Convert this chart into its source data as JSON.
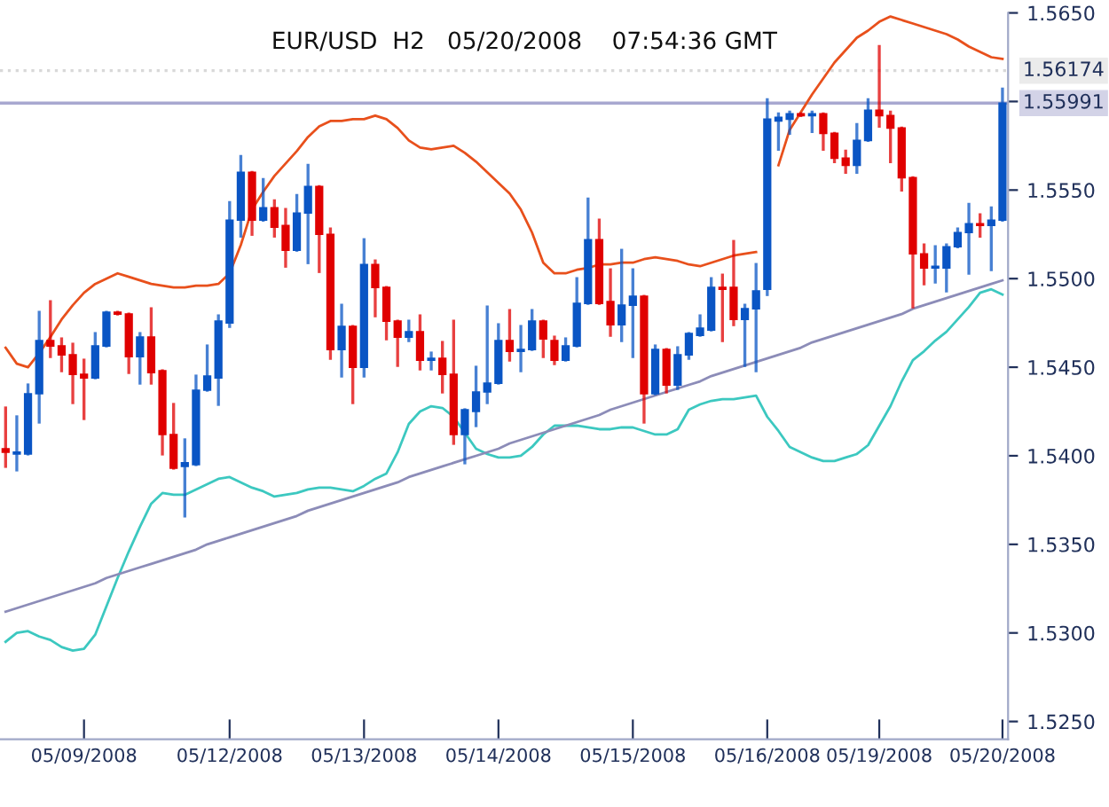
{
  "chart_data": {
    "type": "candlestick",
    "title": "EUR/USD  H2   05/20/2008    07:54:36 GMT",
    "categories": [
      null,
      null,
      null,
      null,
      null,
      null,
      null,
      "05/09/2008",
      null,
      null,
      null,
      null,
      null,
      null,
      null,
      null,
      null,
      null,
      null,
      null,
      "05/12/2008",
      null,
      null,
      null,
      null,
      null,
      null,
      null,
      null,
      null,
      null,
      null,
      "05/13/2008",
      null,
      null,
      null,
      null,
      null,
      null,
      null,
      null,
      null,
      null,
      null,
      "05/14/2008",
      null,
      null,
      null,
      null,
      null,
      null,
      null,
      null,
      null,
      null,
      null,
      "05/15/2008",
      null,
      null,
      null,
      null,
      null,
      null,
      null,
      null,
      null,
      null,
      null,
      "05/16/2008",
      null,
      null,
      null,
      null,
      null,
      null,
      null,
      null,
      null,
      "05/19/2008",
      null,
      null,
      null,
      null,
      null,
      null,
      null,
      null,
      null,
      null,
      "05/20/2008"
    ],
    "ohlc": [
      [
        1.5404,
        1.5427,
        1.5394,
        1.5402
      ],
      [
        1.5401,
        1.5422,
        1.5392,
        1.5402
      ],
      [
        1.5401,
        1.544,
        1.5401,
        1.5435
      ],
      [
        1.5435,
        1.5481,
        1.5419,
        1.5465
      ],
      [
        1.5465,
        1.5487,
        1.5456,
        1.5462
      ],
      [
        1.5462,
        1.5466,
        1.5448,
        1.5457
      ],
      [
        1.5457,
        1.5463,
        1.543,
        1.5446
      ],
      [
        1.5446,
        1.5454,
        1.5421,
        1.5444
      ],
      [
        1.5444,
        1.5469,
        1.5444,
        1.5462
      ],
      [
        1.5462,
        1.5481,
        1.5462,
        1.5481
      ],
      [
        1.5481,
        1.5481,
        1.548,
        1.548
      ],
      [
        1.548,
        1.548,
        1.5447,
        1.5456
      ],
      [
        1.5456,
        1.5469,
        1.5441,
        1.5467
      ],
      [
        1.5467,
        1.5483,
        1.5441,
        1.5447
      ],
      [
        1.5448,
        1.5448,
        1.5401,
        1.5412
      ],
      [
        1.5412,
        1.5429,
        1.5393,
        1.5393
      ],
      [
        1.5394,
        1.5409,
        1.5366,
        1.5396
      ],
      [
        1.5395,
        1.5445,
        1.5395,
        1.5437
      ],
      [
        1.5437,
        1.5462,
        1.5437,
        1.5445
      ],
      [
        1.5444,
        1.5479,
        1.5429,
        1.5476
      ],
      [
        1.5475,
        1.5543,
        1.5473,
        1.5533
      ],
      [
        1.5533,
        1.5569,
        1.5524,
        1.556
      ],
      [
        1.556,
        1.556,
        1.5525,
        1.5533
      ],
      [
        1.5533,
        1.5556,
        1.5533,
        1.554
      ],
      [
        1.554,
        1.5544,
        1.5524,
        1.5529
      ],
      [
        1.553,
        1.5539,
        1.5507,
        1.5516
      ],
      [
        1.5516,
        1.5547,
        1.5516,
        1.5537
      ],
      [
        1.5537,
        1.5564,
        1.5509,
        1.5552
      ],
      [
        1.5552,
        1.5552,
        1.5504,
        1.5525
      ],
      [
        1.5525,
        1.5528,
        1.5455,
        1.546
      ],
      [
        1.546,
        1.5485,
        1.5445,
        1.5473
      ],
      [
        1.5473,
        1.5473,
        1.543,
        1.545
      ],
      [
        1.545,
        1.5522,
        1.5445,
        1.5508
      ],
      [
        1.5508,
        1.551,
        1.5479,
        1.5495
      ],
      [
        1.5495,
        1.5495,
        1.5466,
        1.5476
      ],
      [
        1.5476,
        1.5476,
        1.5451,
        1.5467
      ],
      [
        1.5467,
        1.5476,
        1.5465,
        1.547
      ],
      [
        1.547,
        1.5479,
        1.5449,
        1.5454
      ],
      [
        1.5454,
        1.5458,
        1.5449,
        1.5455
      ],
      [
        1.5455,
        1.5464,
        1.5436,
        1.5446
      ],
      [
        1.5446,
        1.5476,
        1.5407,
        1.5412
      ],
      [
        1.5412,
        1.5426,
        1.5396,
        1.5426
      ],
      [
        1.5425,
        1.545,
        1.5417,
        1.5436
      ],
      [
        1.5436,
        1.5484,
        1.543,
        1.5441
      ],
      [
        1.5441,
        1.5474,
        1.5441,
        1.5465
      ],
      [
        1.5465,
        1.5482,
        1.5454,
        1.5459
      ],
      [
        1.5459,
        1.5473,
        1.5448,
        1.546
      ],
      [
        1.546,
        1.5482,
        1.546,
        1.5476
      ],
      [
        1.5476,
        1.5476,
        1.5456,
        1.5466
      ],
      [
        1.5465,
        1.5467,
        1.5452,
        1.5454
      ],
      [
        1.5454,
        1.5466,
        1.5454,
        1.5462
      ],
      [
        1.5462,
        1.55,
        1.5462,
        1.5486
      ],
      [
        1.5486,
        1.5545,
        1.5486,
        1.5522
      ],
      [
        1.5522,
        1.5533,
        1.5486,
        1.5486
      ],
      [
        1.5487,
        1.5505,
        1.5468,
        1.5474
      ],
      [
        1.5474,
        1.5516,
        1.5465,
        1.5485
      ],
      [
        1.5485,
        1.5505,
        1.5456,
        1.549
      ],
      [
        1.549,
        1.549,
        1.5419,
        1.5435
      ],
      [
        1.5435,
        1.5462,
        1.5435,
        1.546
      ],
      [
        1.546,
        1.546,
        1.5436,
        1.544
      ],
      [
        1.544,
        1.5461,
        1.5438,
        1.5457
      ],
      [
        1.5457,
        1.5469,
        1.5455,
        1.5469
      ],
      [
        1.5468,
        1.5479,
        1.5468,
        1.5472
      ],
      [
        1.5471,
        1.55,
        1.5471,
        1.5495
      ],
      [
        1.5495,
        1.5502,
        1.5465,
        1.5494
      ],
      [
        1.5495,
        1.5521,
        1.5474,
        1.5477
      ],
      [
        1.5477,
        1.5485,
        1.5451,
        1.5483
      ],
      [
        1.5483,
        1.5508,
        1.5448,
        1.5493
      ],
      [
        1.5494,
        1.5601,
        1.5491,
        1.559
      ],
      [
        1.5589,
        1.5593,
        1.5573,
        1.5591
      ],
      [
        1.559,
        1.5594,
        1.5582,
        1.5593
      ],
      [
        1.5593,
        1.5593,
        1.5592,
        1.5592
      ],
      [
        1.5592,
        1.5594,
        1.5583,
        1.5593
      ],
      [
        1.5593,
        1.5593,
        1.5573,
        1.5582
      ],
      [
        1.5582,
        1.5582,
        1.5566,
        1.5568
      ],
      [
        1.5568,
        1.5572,
        1.556,
        1.5564
      ],
      [
        1.5564,
        1.5587,
        1.556,
        1.5578
      ],
      [
        1.5578,
        1.5601,
        1.5578,
        1.5595
      ],
      [
        1.5595,
        1.5631,
        1.5586,
        1.5592
      ],
      [
        1.5592,
        1.5594,
        1.5566,
        1.5585
      ],
      [
        1.5585,
        1.5585,
        1.555,
        1.5557
      ],
      [
        1.5557,
        1.5557,
        1.5484,
        1.5514
      ],
      [
        1.5514,
        1.5519,
        1.5497,
        1.5506
      ],
      [
        1.5506,
        1.5518,
        1.5498,
        1.5507
      ],
      [
        1.5506,
        1.5519,
        1.5493,
        1.5518
      ],
      [
        1.5518,
        1.5528,
        1.5518,
        1.5526
      ],
      [
        1.5526,
        1.5542,
        1.5503,
        1.5531
      ],
      [
        1.5531,
        1.5536,
        1.5524,
        1.553
      ],
      [
        1.553,
        1.554,
        1.5505,
        1.5533
      ],
      [
        1.5533,
        1.5607,
        1.5533,
        1.55991
      ]
    ],
    "colors": [
      "#e00000",
      "#0a55c4",
      "#0a55c4",
      "#0a55c4",
      "#e00000",
      "#e00000",
      "#e00000",
      "#e00000",
      "#0a55c4",
      "#0a55c4",
      "#e00000",
      "#e00000",
      "#0a55c4",
      "#e00000",
      "#e00000",
      "#e00000",
      "#0a55c4",
      "#0a55c4",
      "#0a55c4",
      "#0a55c4",
      "#0a55c4",
      "#0a55c4",
      "#e00000",
      "#0a55c4",
      "#e00000",
      "#e00000",
      "#0a55c4",
      "#0a55c4",
      "#e00000",
      "#e00000",
      "#0a55c4",
      "#e00000",
      "#0a55c4",
      "#e00000",
      "#e00000",
      "#e00000",
      "#0a55c4",
      "#e00000",
      "#0a55c4",
      "#e00000",
      "#e00000",
      "#0a55c4",
      "#0a55c4",
      "#0a55c4",
      "#0a55c4",
      "#e00000",
      "#0a55c4",
      "#0a55c4",
      "#e00000",
      "#e00000",
      "#0a55c4",
      "#0a55c4",
      "#0a55c4",
      "#e00000",
      "#e00000",
      "#0a55c4",
      "#0a55c4",
      "#e00000",
      "#0a55c4",
      "#e00000",
      "#0a55c4",
      "#0a55c4",
      "#0a55c4",
      "#0a55c4",
      "#e00000",
      "#e00000",
      "#0a55c4",
      "#0a55c4",
      "#0a55c4",
      "#0a55c4",
      "#0a55c4",
      "#e00000",
      "#0a55c4",
      "#e00000",
      "#e00000",
      "#e00000",
      "#0a55c4",
      "#0a55c4",
      "#e00000",
      "#e00000",
      "#e00000",
      "#e00000",
      "#e00000",
      "#0a55c4",
      "#0a55c4",
      "#0a55c4",
      "#0a55c4",
      "#e00000",
      "#0a55c4",
      "#0a55c4"
    ],
    "series": [
      {
        "type": "line",
        "color": "#e8501c",
        "values": [
          1.5461,
          1.5452,
          1.545,
          1.5458,
          1.5467,
          1.5477,
          1.5485,
          1.5492,
          1.5497,
          1.55,
          1.5503,
          1.5501,
          1.5499,
          1.5497,
          1.5496,
          1.5495,
          1.5495,
          1.5496,
          1.5496,
          1.5497,
          1.5503,
          1.5519,
          1.5539,
          1.5549,
          1.5558,
          1.5565,
          1.5572,
          1.558,
          1.5586,
          1.5589,
          1.5589,
          1.559,
          1.559,
          1.5592,
          1.559,
          1.5585,
          1.5578,
          1.5574,
          1.5573,
          1.5574,
          1.5575,
          1.5571,
          1.5566,
          1.556,
          1.5554,
          1.5548,
          1.5539,
          1.5526,
          1.5509,
          1.5503,
          1.5503,
          1.5505,
          1.5506,
          1.5508,
          1.5508,
          1.5509,
          1.5509,
          1.5511,
          1.5512,
          1.5511,
          1.551,
          1.5508,
          1.5507,
          1.5509,
          1.5511,
          1.5513,
          1.5514,
          1.5515,
          null,
          1.5564,
          1.5584,
          1.5594,
          1.5604,
          1.5613,
          1.5622,
          1.5629,
          1.5636,
          1.564,
          1.5645,
          1.5648,
          1.5646,
          1.5644,
          1.5642,
          1.564,
          1.5638,
          1.5635,
          1.5631,
          1.5628,
          1.5625,
          1.5624
        ]
      },
      {
        "type": "line",
        "color": "#3cc8c0",
        "values": [
          1.5295,
          1.53,
          1.5301,
          1.5298,
          1.5296,
          1.5292,
          1.529,
          1.5291,
          1.5299,
          1.5315,
          1.5331,
          1.5346,
          1.536,
          1.5373,
          1.5379,
          1.5378,
          1.5378,
          1.5381,
          1.5384,
          1.5387,
          1.5388,
          1.5385,
          1.5382,
          1.538,
          1.5377,
          1.5378,
          1.5379,
          1.5381,
          1.5382,
          1.5382,
          1.5381,
          1.538,
          1.5383,
          1.5387,
          1.539,
          1.5402,
          1.5418,
          1.5425,
          1.5428,
          1.5427,
          1.5422,
          1.5413,
          1.5404,
          1.5401,
          1.5399,
          1.5399,
          1.54,
          1.5405,
          1.5412,
          1.5417,
          1.5417,
          1.5417,
          1.5416,
          1.5415,
          1.5415,
          1.5416,
          1.5416,
          1.5414,
          1.5412,
          1.5412,
          1.5415,
          1.5426,
          1.5429,
          1.5431,
          1.5432,
          1.5432,
          1.5433,
          1.5434,
          1.5422,
          1.5414,
          1.5405,
          1.5402,
          1.5399,
          1.5397,
          1.5397,
          1.5399,
          1.5401,
          1.5406,
          1.5417,
          1.5428,
          1.5442,
          1.5454,
          1.5459,
          1.5465,
          1.547,
          1.5477,
          1.5484,
          1.5492,
          1.5494,
          1.5491
        ]
      },
      {
        "type": "line",
        "color": "#8c8cb8",
        "values": [
          1.5312,
          1.5314,
          1.5316,
          1.5318,
          1.532,
          1.5322,
          1.5324,
          1.5326,
          1.5328,
          1.5331,
          1.5333,
          1.5335,
          1.5337,
          1.5339,
          1.5341,
          1.5343,
          1.5345,
          1.5347,
          1.535,
          1.5352,
          1.5354,
          1.5356,
          1.5358,
          1.536,
          1.5362,
          1.5364,
          1.5366,
          1.5369,
          1.5371,
          1.5373,
          1.5375,
          1.5377,
          1.5379,
          1.5381,
          1.5383,
          1.5385,
          1.5388,
          1.539,
          1.5392,
          1.5394,
          1.5396,
          1.5398,
          1.54,
          1.5402,
          1.5404,
          1.5407,
          1.5409,
          1.5411,
          1.5413,
          1.5415,
          1.5417,
          1.5419,
          1.5421,
          1.5423,
          1.5426,
          1.5428,
          1.543,
          1.5432,
          1.5434,
          1.5436,
          1.5438,
          1.544,
          1.5442,
          1.5445,
          1.5447,
          1.5449,
          1.5451,
          1.5453,
          1.5455,
          1.5457,
          1.5459,
          1.5461,
          1.5464,
          1.5466,
          1.5468,
          1.547,
          1.5472,
          1.5474,
          1.5476,
          1.5478,
          1.548,
          1.5483,
          1.5485,
          1.5487,
          1.5489,
          1.5491,
          1.5493,
          1.5495,
          1.5497,
          1.5499
        ]
      }
    ],
    "ref_lines": [
      {
        "axis": "y",
        "value": 1.56174,
        "label": "1.56174",
        "color": "#d8d8d8",
        "line_style": "dotted"
      },
      {
        "axis": "y",
        "value": 1.55991,
        "label": "1.55991",
        "color": "#a8a8d0",
        "line_style": "solid"
      }
    ],
    "ylim": [
      1.524,
      1.565
    ],
    "yticks": [
      {
        "value": 1.525,
        "label": "1.5250"
      },
      {
        "value": 1.53,
        "label": "1.5300"
      },
      {
        "value": 1.535,
        "label": "1.5350"
      },
      {
        "value": 1.54,
        "label": "1.5400"
      },
      {
        "value": 1.545,
        "label": "1.5450"
      },
      {
        "value": 1.55,
        "label": "1.5500"
      },
      {
        "value": 1.555,
        "label": "1.5550"
      },
      {
        "value": 1.56,
        "label": null
      },
      {
        "value": 1.565,
        "label": "1.5650"
      }
    ],
    "grid": false,
    "legend": false
  }
}
